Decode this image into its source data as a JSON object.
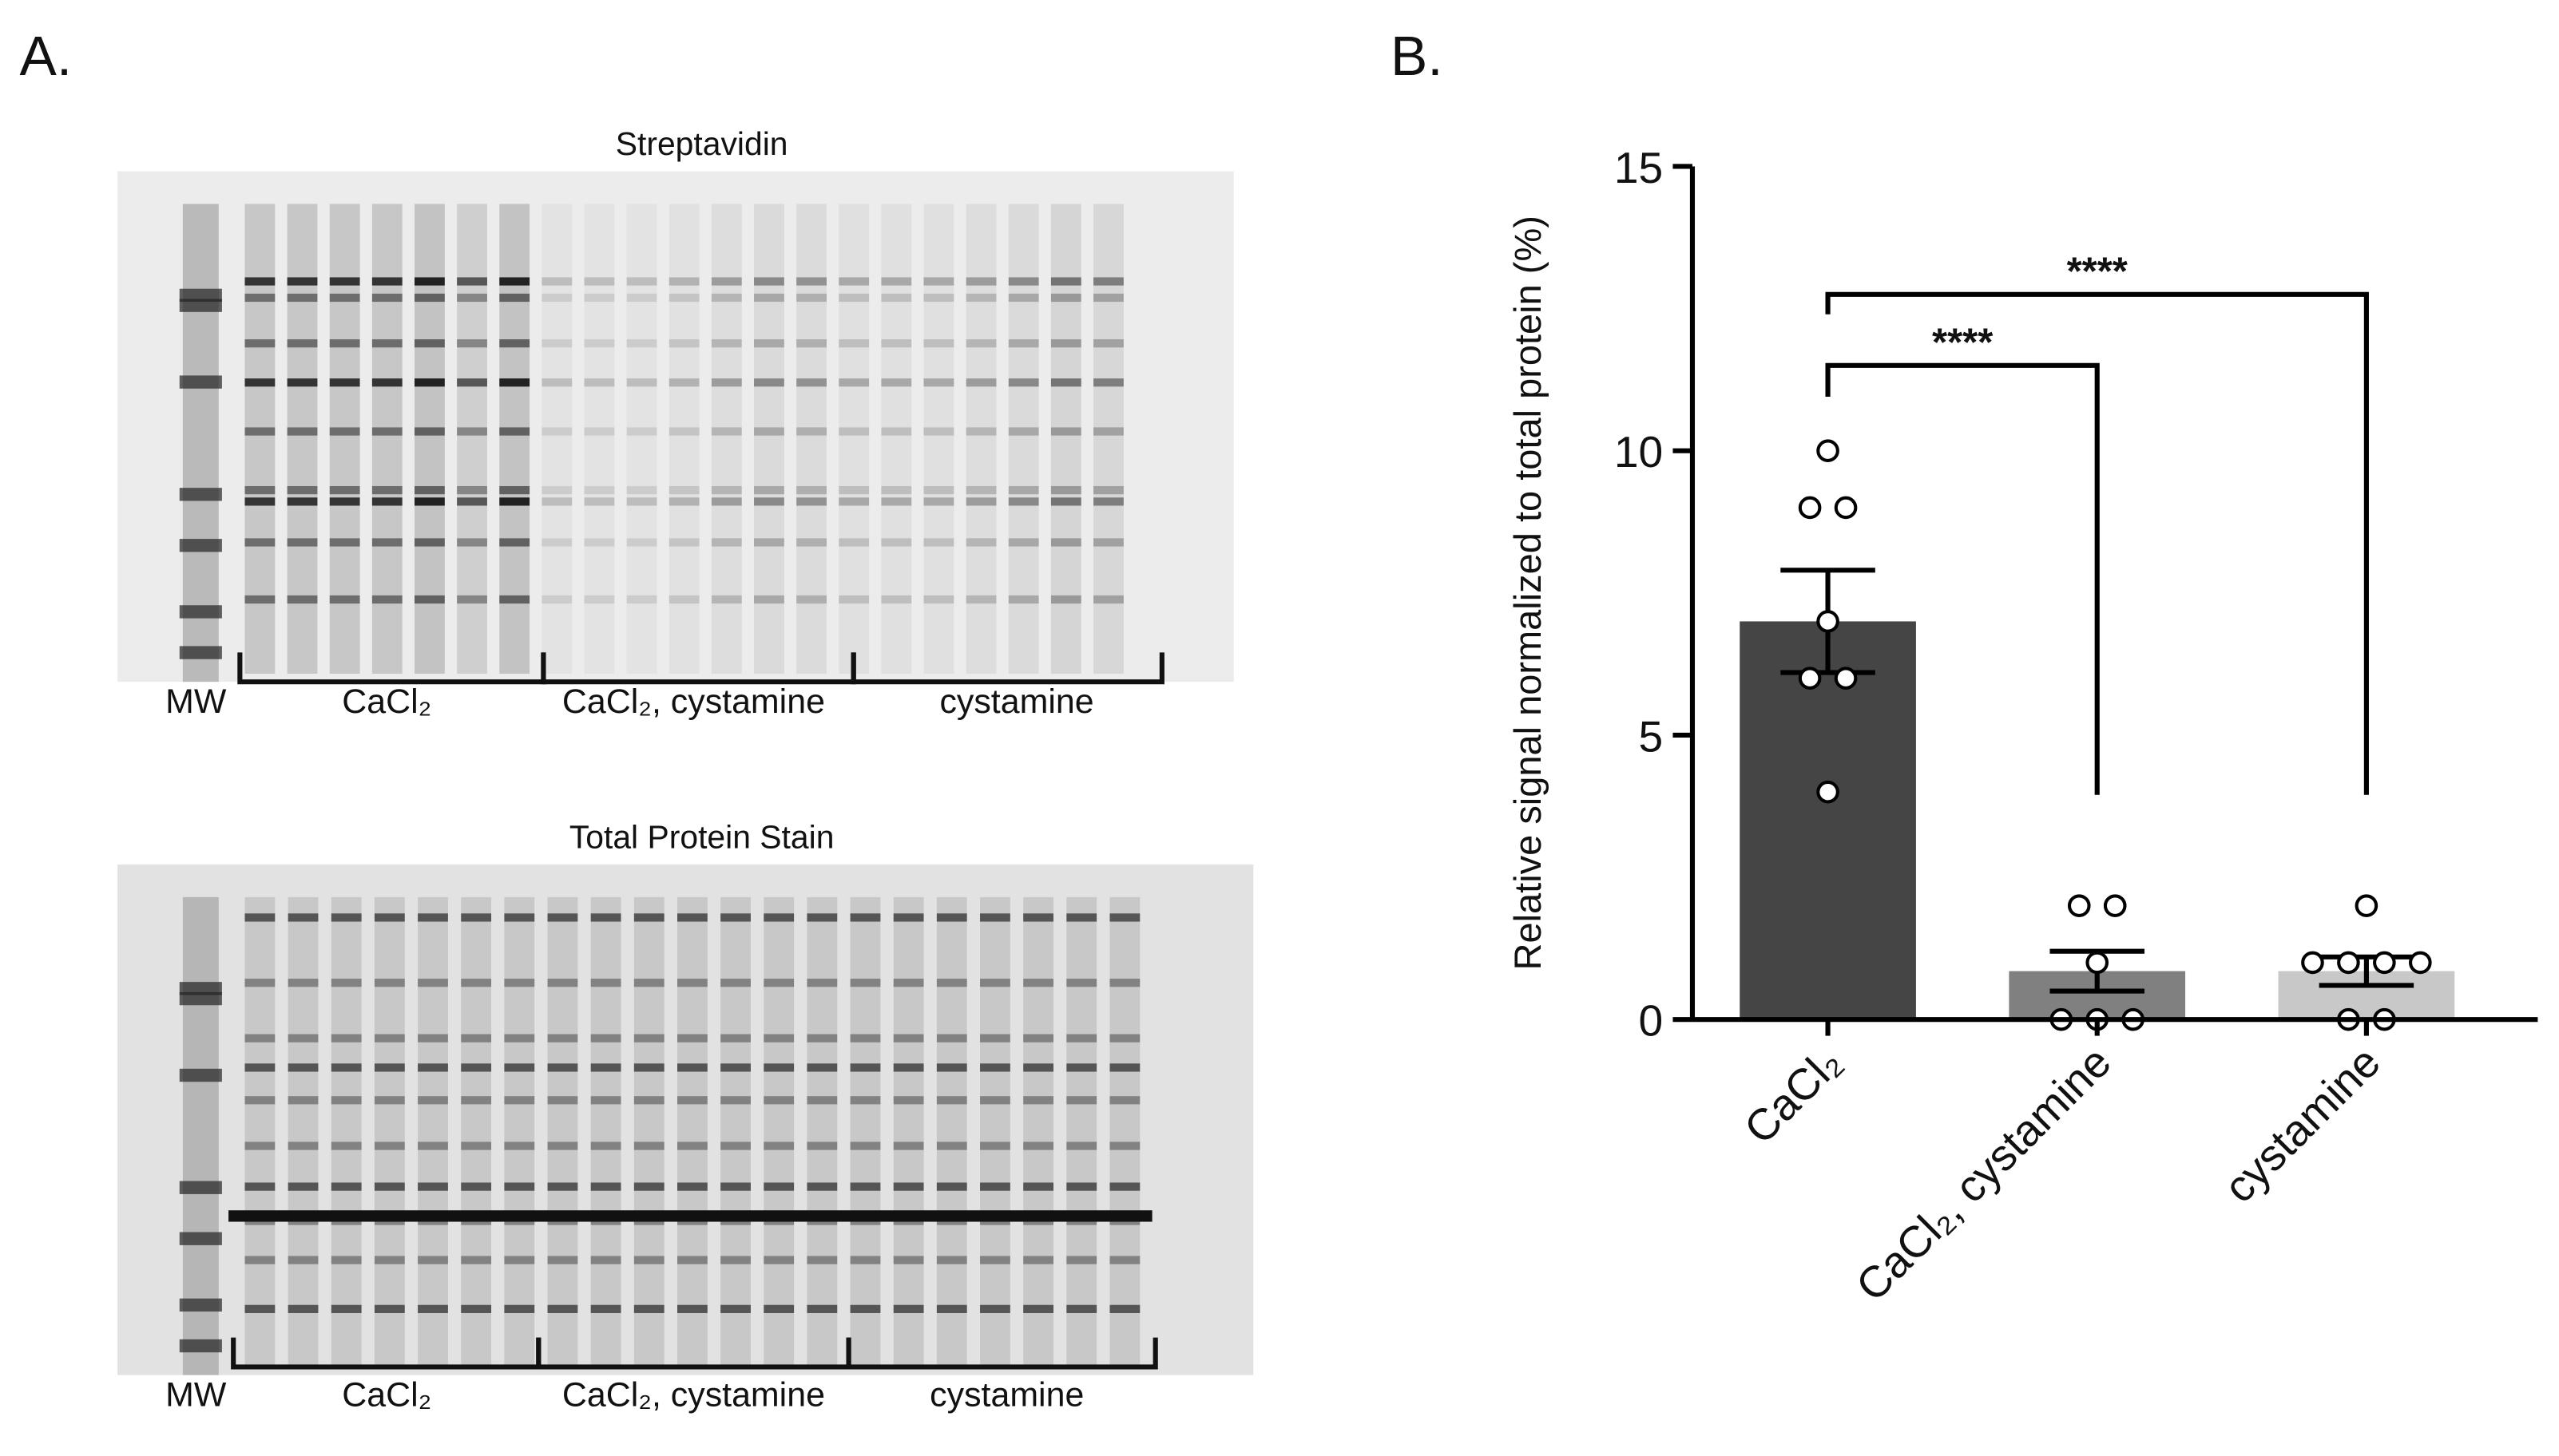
{
  "panel_a": {
    "label": "A.",
    "blots": [
      {
        "title": "Streptavidin",
        "labels": [
          "MW",
          "CaCl₂",
          "CaCl₂, cystamine",
          "cystamine"
        ]
      },
      {
        "title": "Total Protein Stain",
        "labels": [
          "MW",
          "CaCl₂",
          "CaCl₂, cystamine",
          "cystamine"
        ]
      }
    ]
  },
  "chart_data": {
    "type": "bar",
    "panel_label": "B.",
    "ylabel": "Relative signal normalized to total protein (%)",
    "categories": [
      "CaCl₂",
      "CaCl₂, cystamine",
      "cystamine"
    ],
    "values": [
      7.0,
      0.85,
      0.85
    ],
    "errors": [
      0.9,
      0.35,
      0.25
    ],
    "points": [
      [
        10,
        9,
        9,
        7,
        6,
        6,
        4
      ],
      [
        2,
        2,
        1,
        0,
        0,
        0
      ],
      [
        2,
        1,
        1,
        1,
        1,
        0,
        0
      ]
    ],
    "colors": [
      "#454545",
      "#808080",
      "#c8c8c8"
    ],
    "ylim": [
      0,
      15
    ],
    "yticks": [
      0,
      5,
      10,
      15
    ],
    "annotations": [
      {
        "text": "****",
        "pair": [
          0,
          1
        ],
        "y": 11.5,
        "ends": [
          10.95,
          3.95
        ]
      },
      {
        "text": "****",
        "pair": [
          0,
          2
        ],
        "y": 12.75,
        "ends": [
          12.4,
          3.95
        ]
      }
    ]
  }
}
